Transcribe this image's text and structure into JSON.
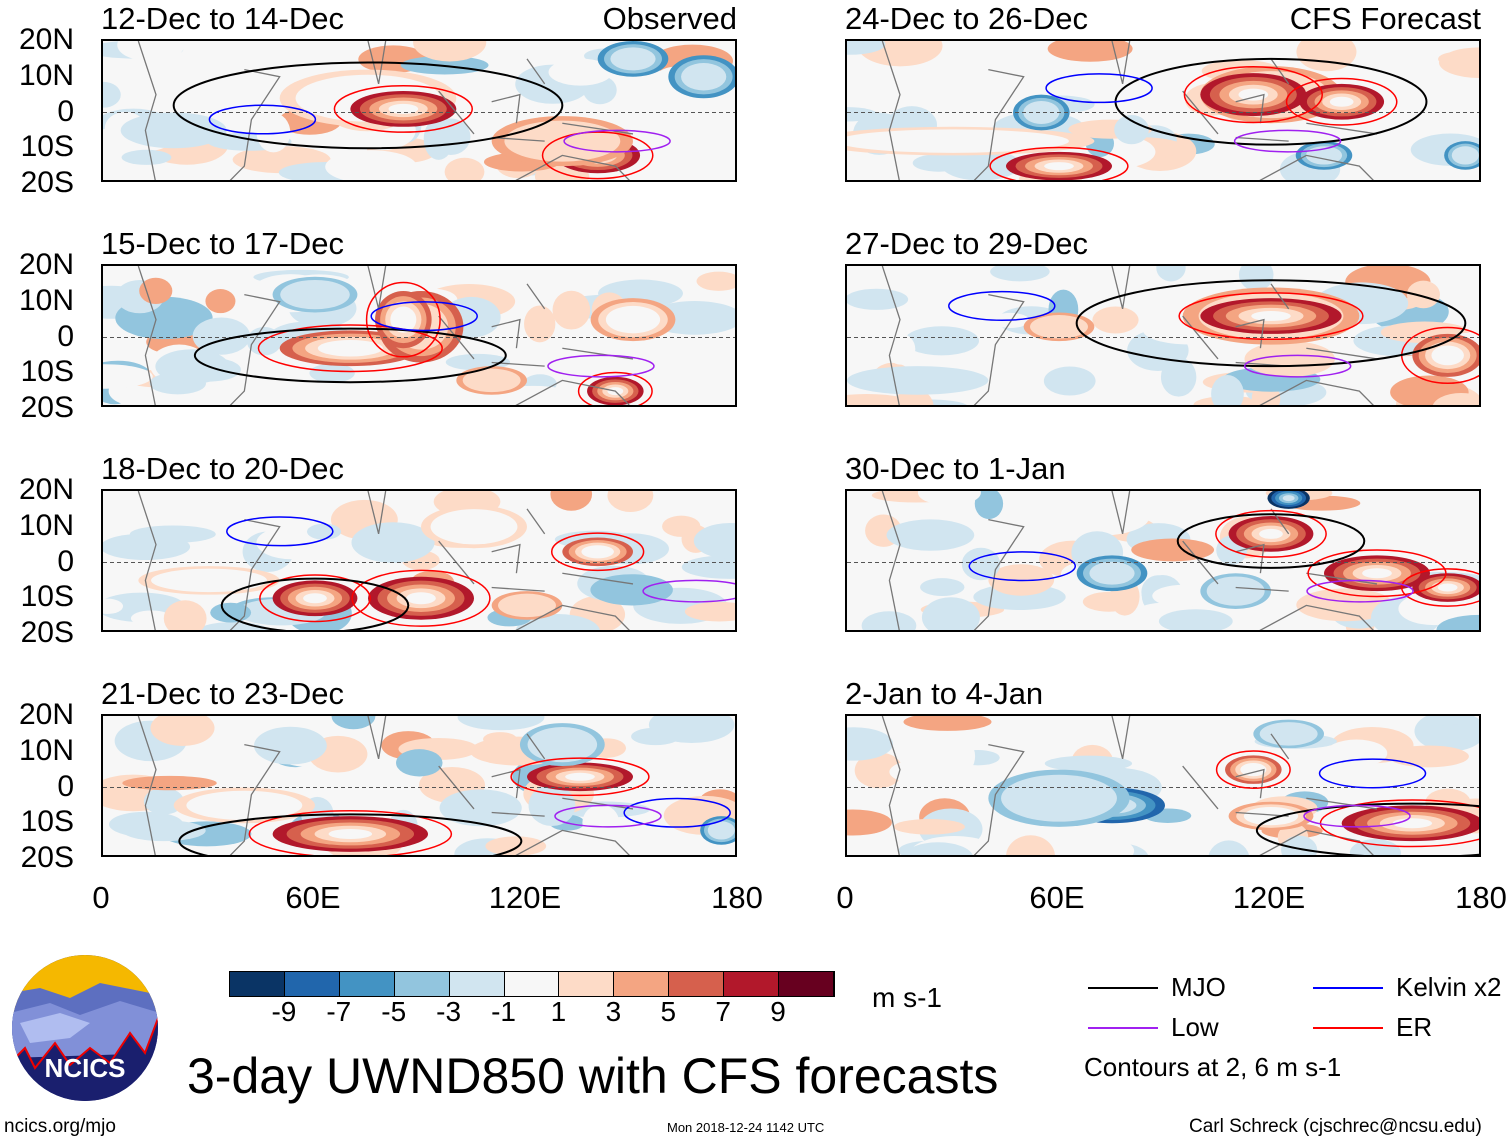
{
  "panels": [
    {
      "title": "12-Dec to 14-Dec",
      "label": "Observed"
    },
    {
      "title": "24-Dec to 26-Dec",
      "label": "CFS Forecast"
    },
    {
      "title": "15-Dec to 17-Dec",
      "label": ""
    },
    {
      "title": "27-Dec to 29-Dec",
      "label": ""
    },
    {
      "title": "18-Dec to 20-Dec",
      "label": ""
    },
    {
      "title": "30-Dec to 1-Jan",
      "label": ""
    },
    {
      "title": "21-Dec to 23-Dec",
      "label": ""
    },
    {
      "title": "2-Jan to 4-Jan",
      "label": ""
    }
  ],
  "lat_labels": [
    "20N",
    "10N",
    "0",
    "10S",
    "20S"
  ],
  "lon_labels": [
    "0",
    "60E",
    "120E",
    "180"
  ],
  "colorbar": {
    "colors": [
      "#0a3465",
      "#2166ac",
      "#4393c3",
      "#92c5de",
      "#d1e5f0",
      "#f7f7f7",
      "#fddbc7",
      "#f4a582",
      "#d6604d",
      "#b2182b",
      "#67001f"
    ],
    "ticks": [
      "-9",
      "-7",
      "-5",
      "-3",
      "-1",
      "1",
      "3",
      "5",
      "7",
      "9"
    ],
    "units": "m s-1"
  },
  "legend": {
    "items": [
      {
        "label": "MJO",
        "color": "#000000"
      },
      {
        "label": "Kelvin x2",
        "color": "#0000ff"
      },
      {
        "label": "Low",
        "color": "#a020f0"
      },
      {
        "label": "ER",
        "color": "#ff0000"
      }
    ],
    "note": "Contours at 2, 6 m s-1"
  },
  "title": "3-day UWND850 with CFS forecasts",
  "logo_text": "NCICS",
  "footer": {
    "left": "ncics.org/mjo",
    "center": "Mon 2018-12-24 1142 UTC",
    "right": "Carl Schreck (cjschrec@ncsu.edu)"
  }
}
